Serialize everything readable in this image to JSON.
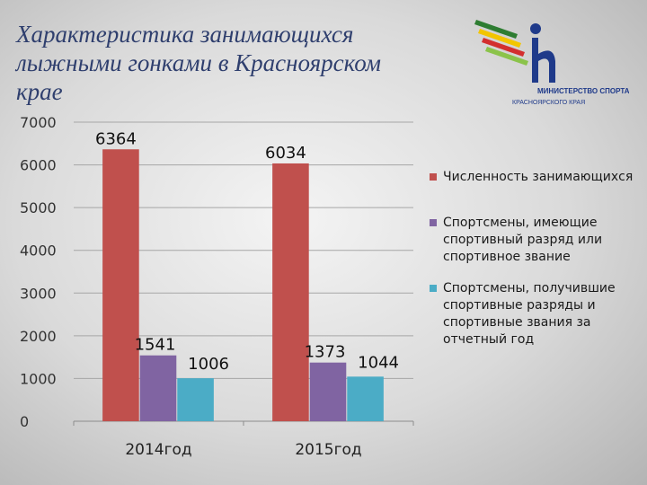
{
  "slide": {
    "title": "Характеристика занимающихся лыжными гонками в Красноярском крае"
  },
  "logo": {
    "line1": "МИНИСТЕРСТВО СПОРТА",
    "line2": "КРАСНОЯРСКОГО КРАЯ"
  },
  "colors": {
    "red": "#c0504d",
    "purple": "#8064a2",
    "cyan": "#4bacc6"
  },
  "chart_data": {
    "type": "bar",
    "categories": [
      "2014год",
      "2015год"
    ],
    "series": [
      {
        "name": "Численность занимающихся",
        "values": [
          6364,
          6034
        ],
        "color": "#c0504d"
      },
      {
        "name": "Спортсмены, имеющие спортивный разряд или спортивное звание",
        "values": [
          1541,
          1373
        ],
        "color": "#8064a2"
      },
      {
        "name": "Спортсмены, получившие спортивные разряды и спортивные звания за отчетный год",
        "values": [
          1006,
          1044
        ],
        "color": "#4bacc6"
      }
    ],
    "ylim": [
      0,
      7000
    ],
    "yticks": [
      0,
      1000,
      2000,
      3000,
      4000,
      5000,
      6000,
      7000
    ],
    "grid": true,
    "legend": "right"
  }
}
